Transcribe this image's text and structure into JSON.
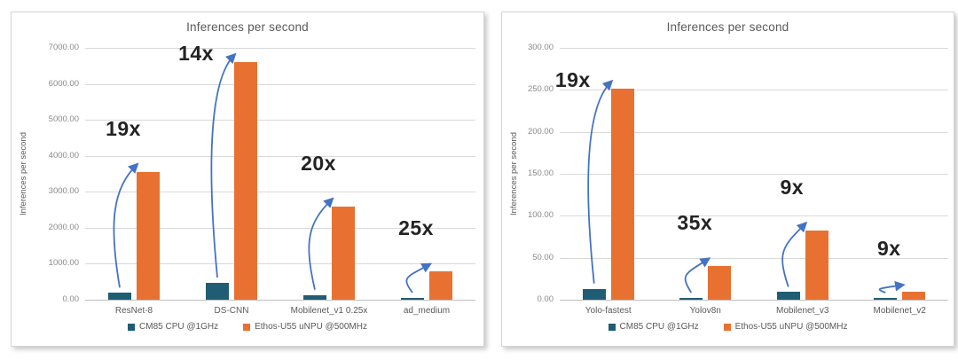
{
  "figure": {
    "background": "#ffffff"
  },
  "chart_data": [
    {
      "type": "bar",
      "title": "Inferences per second",
      "ylabel": "Inferences per second",
      "xlabel": "",
      "ylim": [
        0,
        7000
      ],
      "ytick_step": 1000,
      "ytick_decimals": 2,
      "grid": true,
      "legend_position": "bottom",
      "arrow_color": "#4472c4",
      "categories": [
        "ResNet-8",
        "DS-CNN",
        "Mobilenet_v1 0.25x",
        "ad_medium"
      ],
      "series": [
        {
          "name": "CM85 CPU @1GHz",
          "color": "#215c75",
          "values": [
            190,
            470,
            130,
            31
          ]
        },
        {
          "name": "Ethos-U55 uNPU @500MHz",
          "color": "#e87132",
          "values": [
            3550,
            6600,
            2590,
            780
          ]
        }
      ],
      "annotations": [
        {
          "label": "19x",
          "category": "ResNet-8"
        },
        {
          "label": "14x",
          "category": "DS-CNN"
        },
        {
          "label": "20x",
          "category": "Mobilenet_v1 0.25x"
        },
        {
          "label": "25x",
          "category": "ad_medium"
        }
      ]
    },
    {
      "type": "bar",
      "title": "Inferences per second",
      "ylabel": "Inferences per second",
      "xlabel": "",
      "ylim": [
        0,
        300
      ],
      "ytick_step": 50,
      "ytick_decimals": 2,
      "grid": true,
      "legend_position": "bottom",
      "arrow_color": "#4472c4",
      "categories": [
        "Yolo-fastest",
        "Yolov8n",
        "Mobilenet_v3",
        "Mobilenet_v2"
      ],
      "series": [
        {
          "name": "CM85 CPU @1GHz",
          "color": "#215c75",
          "values": [
            13,
            1.2,
            9,
            1
          ]
        },
        {
          "name": "Ethos-U55 uNPU @500MHz",
          "color": "#e87132",
          "values": [
            251,
            40,
            82,
            9
          ]
        }
      ],
      "annotations": [
        {
          "label": "19x",
          "category": "Yolo-fastest"
        },
        {
          "label": "35x",
          "category": "Yolov8n"
        },
        {
          "label": "9x",
          "category": "Mobilenet_v3"
        },
        {
          "label": "9x",
          "category": "Mobilenet_v2"
        }
      ]
    }
  ]
}
